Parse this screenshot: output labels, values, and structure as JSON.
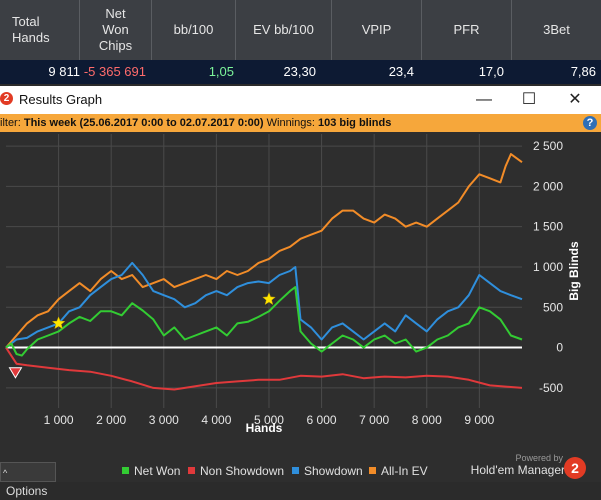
{
  "stats": {
    "headers": [
      {
        "line1": "Total",
        "line2": "Hands",
        "line3": ""
      },
      {
        "line1": "Net",
        "line2": "Won",
        "line3": "Chips"
      },
      {
        "line1": "bb/100",
        "line2": "",
        "line3": ""
      },
      {
        "line1": "EV bb/100",
        "line2": "",
        "line3": ""
      },
      {
        "line1": "VPIP",
        "line2": "",
        "line3": ""
      },
      {
        "line1": "PFR",
        "line2": "",
        "line3": ""
      },
      {
        "line1": "3Bet",
        "line2": "",
        "line3": ""
      }
    ],
    "values": [
      "9 811",
      "-5 365 691",
      "1,05",
      "23,30",
      "23,4",
      "17,0",
      "7,86"
    ]
  },
  "window": {
    "icon_glyph": "2",
    "title": "Results Graph",
    "minimize": "—",
    "maximize": "☐",
    "close": "✕"
  },
  "filter": {
    "prefix": "ilter: ",
    "range": "This week (25.06.2017 0:00 to 02.07.2017 0:00)",
    "winnings_label": " Winnings: ",
    "winnings_value": "103 big blinds",
    "help_glyph": "?"
  },
  "options_label": "Options",
  "legend": {
    "net_won": "Net Won",
    "non_showdown": "Non Showdown",
    "showdown": "Showdown",
    "all_in_ev": "All-In EV"
  },
  "branding": {
    "powered_by": "Powered by",
    "product": "Hold'em Manager",
    "logo_glyph": "2"
  },
  "colors": {
    "net_won": "#33cc33",
    "non_showdown": "#e0393b",
    "showdown": "#2f8fdc",
    "all_in_ev": "#f28c28",
    "zero_line": "#ffffff",
    "grid": "#4a4a4a",
    "filter_bar": "#f6a73b",
    "stats_value_bg": "#0d1a33"
  },
  "chart_data": {
    "type": "line",
    "xlabel": "Hands",
    "ylabel": "Big Blinds",
    "xlim": [
      0,
      9811
    ],
    "ylim": [
      -750,
      2650
    ],
    "x_ticks": [
      1000,
      2000,
      3000,
      4000,
      5000,
      6000,
      7000,
      8000,
      9000
    ],
    "x_tick_labels": [
      "1 000",
      "2 000",
      "3 000",
      "4 000",
      "5 000",
      "6 000",
      "7 000",
      "8 000",
      "9 000"
    ],
    "y_ticks": [
      -500,
      0,
      500,
      1000,
      1500,
      2000,
      2500
    ],
    "y_tick_labels": [
      "-500",
      "0",
      "500",
      "1 000",
      "1 500",
      "2 000",
      "2 500"
    ],
    "grid": true,
    "legend_position": "bottom",
    "series": [
      {
        "name": "Net Won",
        "color_key": "net_won",
        "x": [
          0,
          100,
          200,
          300,
          400,
          600,
          800,
          1000,
          1200,
          1400,
          1600,
          1800,
          2000,
          2200,
          2400,
          2600,
          2800,
          3000,
          3200,
          3400,
          3600,
          3800,
          4000,
          4200,
          4400,
          4600,
          4800,
          5000,
          5200,
          5400,
          5500,
          5600,
          5800,
          6000,
          6200,
          6400,
          6600,
          6800,
          7000,
          7200,
          7400,
          7600,
          7800,
          8000,
          8200,
          8400,
          8600,
          8800,
          9000,
          9200,
          9400,
          9600,
          9811
        ],
        "y": [
          0,
          50,
          -80,
          -100,
          -20,
          100,
          150,
          200,
          300,
          380,
          330,
          450,
          450,
          400,
          550,
          460,
          350,
          150,
          250,
          100,
          150,
          200,
          250,
          150,
          300,
          320,
          380,
          450,
          580,
          700,
          750,
          200,
          50,
          -50,
          50,
          150,
          100,
          0,
          100,
          150,
          50,
          100,
          -50,
          0,
          100,
          150,
          250,
          300,
          500,
          450,
          350,
          150,
          100
        ]
      },
      {
        "name": "Non Showdown",
        "color_key": "non_showdown",
        "x": [
          0,
          200,
          400,
          800,
          1200,
          1600,
          2000,
          2400,
          2800,
          3200,
          3600,
          4000,
          4400,
          4800,
          5200,
          5600,
          6000,
          6400,
          6800,
          7200,
          7600,
          8000,
          8400,
          8800,
          9200,
          9600,
          9811
        ],
        "y": [
          0,
          -200,
          -220,
          -250,
          -280,
          -300,
          -350,
          -420,
          -500,
          -520,
          -480,
          -440,
          -420,
          -400,
          -400,
          -350,
          -360,
          -330,
          -380,
          -360,
          -370,
          -350,
          -360,
          -400,
          -470,
          -490,
          -500
        ]
      },
      {
        "name": "Showdown",
        "color_key": "showdown",
        "x": [
          0,
          200,
          400,
          600,
          800,
          1000,
          1200,
          1400,
          1600,
          1800,
          2000,
          2200,
          2400,
          2600,
          2800,
          3000,
          3200,
          3400,
          3600,
          3800,
          4000,
          4200,
          4400,
          4600,
          4800,
          5000,
          5200,
          5400,
          5500,
          5600,
          5800,
          6000,
          6200,
          6400,
          6600,
          6800,
          7000,
          7200,
          7400,
          7600,
          7800,
          8000,
          8200,
          8400,
          8600,
          8800,
          9000,
          9200,
          9400,
          9600,
          9811
        ],
        "y": [
          0,
          100,
          120,
          200,
          250,
          300,
          450,
          500,
          650,
          750,
          850,
          900,
          1050,
          900,
          700,
          650,
          600,
          500,
          550,
          650,
          700,
          650,
          750,
          800,
          820,
          800,
          900,
          950,
          1000,
          350,
          250,
          100,
          250,
          300,
          200,
          100,
          200,
          300,
          200,
          400,
          300,
          200,
          350,
          450,
          500,
          650,
          900,
          800,
          700,
          650,
          600
        ]
      },
      {
        "name": "All-In EV",
        "color_key": "all_in_ev",
        "x": [
          0,
          200,
          400,
          600,
          800,
          1000,
          1200,
          1400,
          1600,
          1800,
          2000,
          2200,
          2400,
          2600,
          2800,
          3000,
          3200,
          3400,
          3600,
          3800,
          4000,
          4200,
          4400,
          4600,
          4800,
          5000,
          5200,
          5400,
          5600,
          5800,
          6000,
          6200,
          6400,
          6600,
          6800,
          7000,
          7200,
          7400,
          7600,
          7800,
          8000,
          8200,
          8400,
          8600,
          8800,
          9000,
          9200,
          9400,
          9500,
          9600,
          9811
        ],
        "y": [
          0,
          150,
          300,
          400,
          450,
          600,
          700,
          800,
          700,
          850,
          950,
          850,
          900,
          750,
          800,
          850,
          750,
          800,
          850,
          900,
          850,
          950,
          900,
          950,
          1050,
          1100,
          1200,
          1250,
          1350,
          1400,
          1450,
          1600,
          1700,
          1700,
          1600,
          1550,
          1650,
          1600,
          1500,
          1550,
          1500,
          1600,
          1700,
          1800,
          2000,
          2150,
          2100,
          2050,
          2250,
          2400,
          2300
        ]
      }
    ],
    "markers": [
      {
        "kind": "star",
        "x": 1000,
        "y": 300
      },
      {
        "kind": "star",
        "x": 5000,
        "y": 600
      },
      {
        "kind": "down-triangle",
        "x": 180,
        "y": -300
      }
    ]
  }
}
